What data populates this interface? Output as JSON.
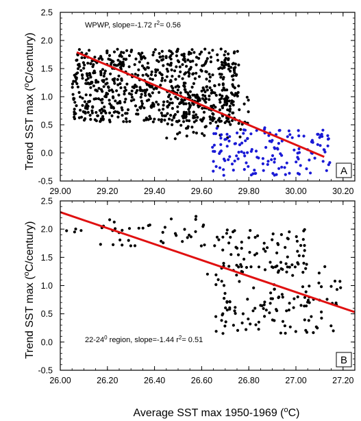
{
  "colors": {
    "black_points": "#000000",
    "blue_points": "#1a1ad6",
    "fit_line": "#e01010"
  },
  "chart_data": [
    {
      "type": "scatter",
      "panel_label": "A",
      "annotation": {
        "prefix": "WPWP, slope=-1.72 r",
        "sup": "2",
        "suffix": "= 0.56"
      },
      "ylabel": {
        "prefix": "Trend SST max (",
        "sup": "o",
        "suffix": "C/century)"
      },
      "xlim": [
        29.0,
        30.25
      ],
      "ylim": [
        -0.5,
        2.5
      ],
      "xticks": [
        "29.00",
        "29.20",
        "29.40",
        "29.60",
        "29.80",
        "30.00",
        "30.20"
      ],
      "yticks": [
        "-0.5",
        "0.0",
        "0.5",
        "1.0",
        "1.5",
        "2.0",
        "2.5"
      ],
      "fit_line": {
        "x": [
          29.07,
          30.12
        ],
        "y": [
          1.79,
          -0.07
        ]
      },
      "series": [
        {
          "color": "black",
          "clusters": [
            {
              "n": 700,
              "x": [
                29.05,
                29.76
              ],
              "y": [
                0.55,
                1.85
              ]
            },
            {
              "n": 80,
              "x": [
                29.45,
                29.8
              ],
              "y": [
                0.25,
                1.1
              ]
            },
            {
              "n": 40,
              "x": [
                29.08,
                29.3
              ],
              "y": [
                0.7,
                1.6
              ]
            }
          ]
        },
        {
          "color": "blue",
          "clusters": [
            {
              "n": 150,
              "x": [
                29.64,
                30.15
              ],
              "y": [
                -0.4,
                0.45
              ]
            }
          ]
        }
      ]
    },
    {
      "type": "scatter",
      "panel_label": "B",
      "annotation": {
        "prefix": "22-24",
        "sup": "0",
        "suffix": " region, slope=-1.44 r",
        "sup2": "2",
        "suffix2": "= 0.51"
      },
      "ylabel": {
        "prefix": "Trend SST max (",
        "sup": "o",
        "suffix": "C/century)"
      },
      "xlabel": {
        "prefix": "Average SST max 1950-1969 (",
        "sup": "o",
        "suffix": "C)"
      },
      "xlim": [
        26.0,
        27.25
      ],
      "ylim": [
        -0.5,
        2.5
      ],
      "xticks": [
        "26.00",
        "26.20",
        "26.40",
        "26.60",
        "26.80",
        "27.00",
        "27.20"
      ],
      "yticks": [
        "-0.5",
        "0.0",
        "0.5",
        "1.0",
        "1.5",
        "2.0",
        "2.5"
      ],
      "fit_line": {
        "x": [
          26.0,
          27.25
        ],
        "y": [
          2.3,
          0.53
        ]
      },
      "series": [
        {
          "color": "black",
          "clusters": [
            {
              "n": 40,
              "x": [
                26.17,
                26.66
              ],
              "y": [
                1.65,
                2.25
              ]
            },
            {
              "n": 90,
              "x": [
                26.66,
                27.18
              ],
              "y": [
                0.15,
                0.8
              ]
            },
            {
              "n": 70,
              "x": [
                26.66,
                27.05
              ],
              "y": [
                1.3,
                2.0
              ]
            },
            {
              "n": 45,
              "x": [
                26.62,
                27.2
              ],
              "y": [
                0.8,
                1.35
              ]
            },
            {
              "n": 4,
              "x": [
                26.0,
                26.1
              ],
              "y": [
                1.95,
                2.05
              ]
            }
          ]
        }
      ]
    }
  ]
}
